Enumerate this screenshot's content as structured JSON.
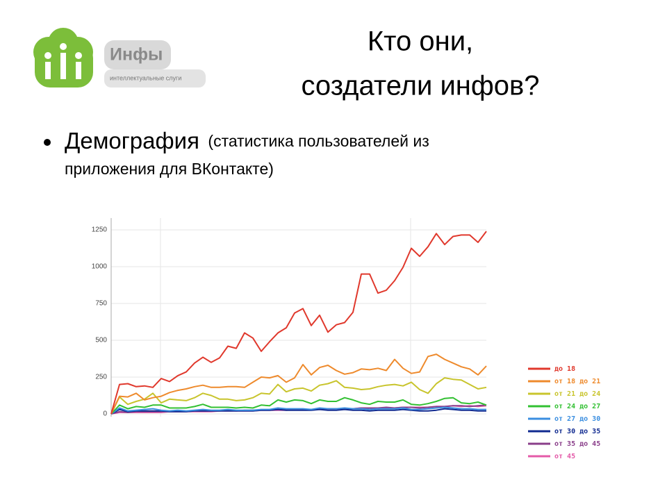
{
  "logo": {
    "name": "Инфы",
    "tagline": "интеллектуальные слуги"
  },
  "title": [
    "Кто они,",
    "создатели инфов?"
  ],
  "bullet": {
    "head": "Демография",
    "rest": [
      "(статистика пользователей из",
      "приложения для ВКонтакте)"
    ]
  },
  "chart_data": {
    "type": "line",
    "categories": [
      null,
      null,
      null,
      null,
      null,
      null,
      null,
      null,
      null,
      null,
      null,
      null,
      null,
      null,
      null,
      null,
      null,
      null,
      null,
      null,
      null,
      null,
      null,
      null,
      null,
      null,
      null,
      null,
      null,
      null,
      null,
      null,
      null,
      null,
      null,
      null,
      null,
      null,
      null,
      null,
      null,
      null,
      null,
      null,
      null,
      null
    ],
    "ylim": [
      0,
      1330
    ],
    "yticks": [
      0,
      250,
      500,
      750,
      1000,
      1250
    ],
    "grid": true,
    "series": [
      {
        "name": "до 18",
        "color": "#e0382c",
        "values": [
          0,
          200,
          205,
          185,
          190,
          180,
          240,
          220,
          260,
          285,
          345,
          385,
          350,
          380,
          460,
          445,
          550,
          515,
          425,
          490,
          550,
          585,
          685,
          715,
          600,
          670,
          555,
          605,
          620,
          690,
          950,
          950,
          820,
          840,
          905,
          995,
          1125,
          1070,
          1135,
          1225,
          1150,
          1205,
          1215,
          1215,
          1165,
          1240
        ]
      },
      {
        "name": "от 18 до 21",
        "color": "#ee8a2c",
        "values": [
          0,
          120,
          115,
          140,
          95,
          110,
          120,
          145,
          160,
          170,
          185,
          195,
          180,
          180,
          185,
          185,
          180,
          215,
          250,
          245,
          260,
          215,
          245,
          335,
          265,
          315,
          330,
          295,
          270,
          280,
          305,
          300,
          310,
          295,
          370,
          310,
          275,
          285,
          390,
          405,
          370,
          345,
          320,
          305,
          265,
          325
        ]
      },
      {
        "name": "от 21 до 24",
        "color": "#c8c42c",
        "values": [
          0,
          115,
          65,
          85,
          100,
          140,
          75,
          100,
          95,
          90,
          110,
          140,
          125,
          100,
          100,
          90,
          95,
          110,
          140,
          135,
          200,
          150,
          170,
          175,
          155,
          195,
          205,
          225,
          180,
          175,
          165,
          170,
          185,
          195,
          200,
          190,
          215,
          165,
          140,
          205,
          245,
          235,
          230,
          200,
          170,
          180
        ]
      },
      {
        "name": "от 24 до 27",
        "color": "#32c032",
        "values": [
          0,
          60,
          35,
          50,
          45,
          60,
          60,
          40,
          40,
          40,
          50,
          65,
          45,
          45,
          45,
          40,
          45,
          40,
          60,
          55,
          95,
          80,
          95,
          90,
          70,
          95,
          85,
          85,
          110,
          95,
          75,
          65,
          85,
          80,
          80,
          95,
          65,
          60,
          70,
          85,
          105,
          110,
          75,
          70,
          80,
          60
        ]
      },
      {
        "name": "от 27 до 30",
        "color": "#3a8ee0",
        "values": [
          0,
          40,
          20,
          25,
          30,
          35,
          25,
          20,
          25,
          20,
          25,
          30,
          25,
          25,
          30,
          25,
          25,
          25,
          30,
          30,
          40,
          35,
          35,
          35,
          30,
          40,
          35,
          35,
          40,
          35,
          35,
          30,
          35,
          35,
          35,
          40,
          30,
          30,
          35,
          40,
          45,
          40,
          35,
          35,
          30,
          30
        ]
      },
      {
        "name": "от 30 до 35",
        "color": "#102a90",
        "values": [
          0,
          30,
          15,
          20,
          20,
          20,
          20,
          15,
          15,
          15,
          20,
          20,
          20,
          20,
          20,
          20,
          20,
          20,
          25,
          25,
          30,
          25,
          25,
          25,
          25,
          30,
          25,
          25,
          30,
          25,
          25,
          20,
          25,
          25,
          25,
          30,
          25,
          20,
          20,
          25,
          35,
          30,
          25,
          25,
          20,
          20
        ]
      },
      {
        "name": "от 35 до 45",
        "color": "#8a3e8a",
        "values": [
          0,
          15,
          10,
          15,
          15,
          15,
          15,
          15,
          15,
          15,
          20,
          20,
          20,
          20,
          25,
          20,
          25,
          25,
          25,
          25,
          30,
          30,
          30,
          30,
          30,
          35,
          35,
          35,
          35,
          35,
          40,
          40,
          40,
          45,
          40,
          45,
          45,
          40,
          45,
          50,
          50,
          55,
          55,
          50,
          55,
          60
        ]
      },
      {
        "name": "от 45",
        "color": "#e45aa8",
        "values": [
          0,
          10,
          10,
          10,
          10,
          10,
          10,
          15,
          15,
          15,
          15,
          15,
          15,
          20,
          20,
          20,
          20,
          20,
          25,
          25,
          25,
          25,
          30,
          30,
          30,
          30,
          30,
          35,
          35,
          35,
          40,
          40,
          40,
          40,
          40,
          45,
          45,
          45,
          45,
          50,
          50,
          55,
          50,
          55,
          50,
          55
        ]
      }
    ]
  }
}
